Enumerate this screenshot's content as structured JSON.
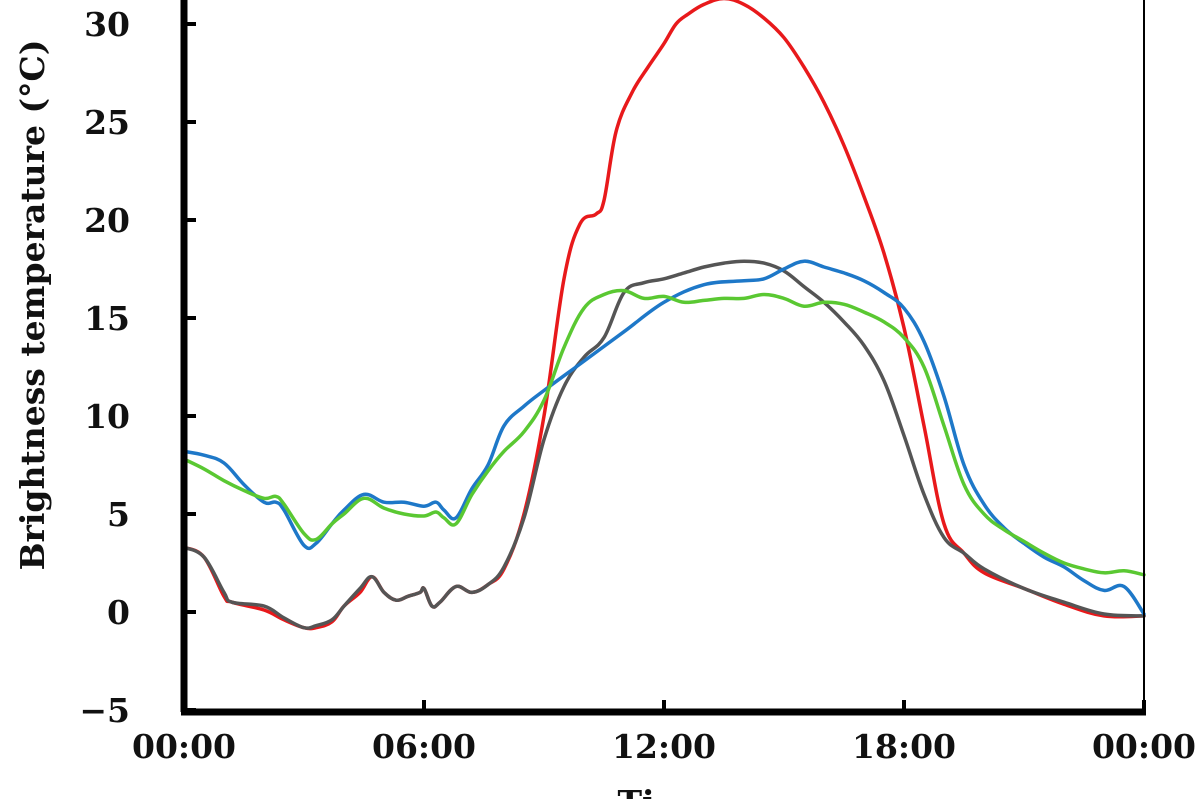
{
  "chart_data": {
    "type": "line",
    "xlabel": "Ti",
    "ylabel": "Brightness temperature (°C)",
    "x_tick_labels": [
      "00:00",
      "06:00",
      "12:00",
      "18:00",
      "00:00"
    ],
    "x_tick_hours": [
      0,
      6,
      12,
      18,
      24
    ],
    "y_ticks": [
      -5,
      0,
      5,
      10,
      15,
      20,
      25,
      30
    ],
    "xlim": [
      0,
      24
    ],
    "ylim": [
      -5,
      30
    ],
    "grid": false,
    "series": [
      {
        "color": "#e8191b",
        "x": [
          0,
          0.5,
          1,
          1.2,
          2,
          2.5,
          3,
          3.3,
          3.7,
          4,
          4.4,
          4.7,
          5,
          5.3,
          5.6,
          5.9,
          6,
          6.2,
          6.4,
          6.8,
          7.2,
          7.6,
          8,
          8.5,
          9,
          9.5,
          9.9,
          10.3,
          10.5,
          10.8,
          11.2,
          11.6,
          12,
          12.3,
          12.6,
          13,
          13.5,
          14,
          14.5,
          15,
          15.5,
          16,
          16.5,
          17,
          17.5,
          18,
          18.5,
          19,
          19.5,
          20,
          21,
          22,
          23,
          24
        ],
        "values": [
          3.3,
          2.8,
          0.8,
          0.5,
          0.1,
          -0.4,
          -0.8,
          -0.8,
          -0.5,
          0.3,
          1.0,
          1.8,
          1.0,
          0.6,
          0.8,
          1.0,
          1.2,
          0.3,
          0.5,
          1.3,
          1.0,
          1.4,
          2.2,
          5.0,
          10.0,
          17.0,
          19.8,
          20.3,
          21.0,
          24.5,
          26.5,
          27.8,
          29.0,
          30.0,
          30.5,
          31.0,
          31.3,
          31.0,
          30.3,
          29.3,
          27.8,
          26.0,
          23.8,
          21.2,
          18.3,
          14.5,
          9.5,
          4.5,
          3.0,
          2.0,
          1.2,
          0.4,
          -0.2,
          -0.2
        ]
      },
      {
        "color": "#555555",
        "x": [
          0,
          0.5,
          1,
          1.2,
          2,
          2.5,
          3,
          3.3,
          3.7,
          4,
          4.4,
          4.7,
          5,
          5.3,
          5.6,
          5.9,
          6,
          6.2,
          6.4,
          6.8,
          7.2,
          7.6,
          8,
          8.5,
          9,
          9.5,
          10,
          10.5,
          11,
          11.5,
          12,
          12.5,
          13,
          13.5,
          14,
          14.5,
          15,
          15.5,
          16,
          16.5,
          17,
          17.5,
          18,
          18.5,
          19,
          19.5,
          20,
          21,
          22,
          23,
          24
        ],
        "values": [
          3.3,
          2.8,
          1.0,
          0.5,
          0.3,
          -0.3,
          -0.8,
          -0.7,
          -0.4,
          0.3,
          1.2,
          1.8,
          1.0,
          0.6,
          0.8,
          1.0,
          1.2,
          0.3,
          0.5,
          1.3,
          1.0,
          1.4,
          2.3,
          4.8,
          8.8,
          11.5,
          13.0,
          14.0,
          16.3,
          16.8,
          17.0,
          17.3,
          17.6,
          17.8,
          17.9,
          17.8,
          17.4,
          16.6,
          15.8,
          14.8,
          13.6,
          11.8,
          9.0,
          6.0,
          3.8,
          3.0,
          2.2,
          1.2,
          0.5,
          -0.1,
          -0.2
        ]
      },
      {
        "color": "#1e78c8",
        "x": [
          0,
          0.5,
          1,
          1.5,
          2,
          2.3,
          2.5,
          3,
          3.3,
          3.7,
          4,
          4.5,
          5,
          5.5,
          6,
          6.3,
          6.5,
          6.8,
          7.2,
          7.6,
          8,
          8.5,
          9,
          10,
          11,
          12,
          13,
          14,
          14.5,
          15,
          15.5,
          16,
          16.5,
          17,
          17.5,
          18,
          18.5,
          19,
          19.5,
          20,
          20.5,
          21,
          21.5,
          22,
          22.5,
          23,
          23.5,
          24
        ],
        "values": [
          8.2,
          8.0,
          7.6,
          6.5,
          5.6,
          5.6,
          5.2,
          3.4,
          3.5,
          4.5,
          5.2,
          6.0,
          5.6,
          5.6,
          5.4,
          5.6,
          5.2,
          4.8,
          6.3,
          7.5,
          9.5,
          10.5,
          11.3,
          12.8,
          14.3,
          15.8,
          16.7,
          16.9,
          17.0,
          17.5,
          17.9,
          17.6,
          17.3,
          16.9,
          16.3,
          15.5,
          13.8,
          11.0,
          7.5,
          5.5,
          4.3,
          3.5,
          2.8,
          2.3,
          1.6,
          1.1,
          1.3,
          -0.1
        ]
      },
      {
        "color": "#5ac832",
        "x": [
          0,
          0.5,
          1,
          1.5,
          2,
          2.3,
          2.5,
          3,
          3.3,
          3.7,
          4,
          4.5,
          5,
          5.5,
          6,
          6.3,
          6.5,
          6.8,
          7.2,
          7.6,
          8,
          8.5,
          9,
          9.5,
          10,
          10.5,
          11,
          11.5,
          12,
          12.5,
          13,
          13.5,
          14,
          14.5,
          15,
          15.5,
          16,
          16.5,
          17,
          17.5,
          18,
          18.5,
          19,
          19.5,
          20,
          20.5,
          21,
          21.5,
          22,
          22.5,
          23,
          23.5,
          24
        ],
        "values": [
          7.8,
          7.3,
          6.7,
          6.2,
          5.8,
          5.9,
          5.5,
          4.0,
          3.7,
          4.5,
          5.0,
          5.8,
          5.3,
          5.0,
          4.9,
          5.1,
          4.8,
          4.5,
          6.0,
          7.2,
          8.2,
          9.2,
          10.8,
          13.5,
          15.5,
          16.2,
          16.4,
          16.0,
          16.1,
          15.8,
          15.9,
          16.0,
          16.0,
          16.2,
          16.0,
          15.6,
          15.8,
          15.7,
          15.3,
          14.8,
          14.0,
          12.5,
          9.5,
          6.5,
          5.0,
          4.2,
          3.6,
          3.0,
          2.5,
          2.2,
          2.0,
          2.1,
          1.9
        ]
      }
    ]
  }
}
